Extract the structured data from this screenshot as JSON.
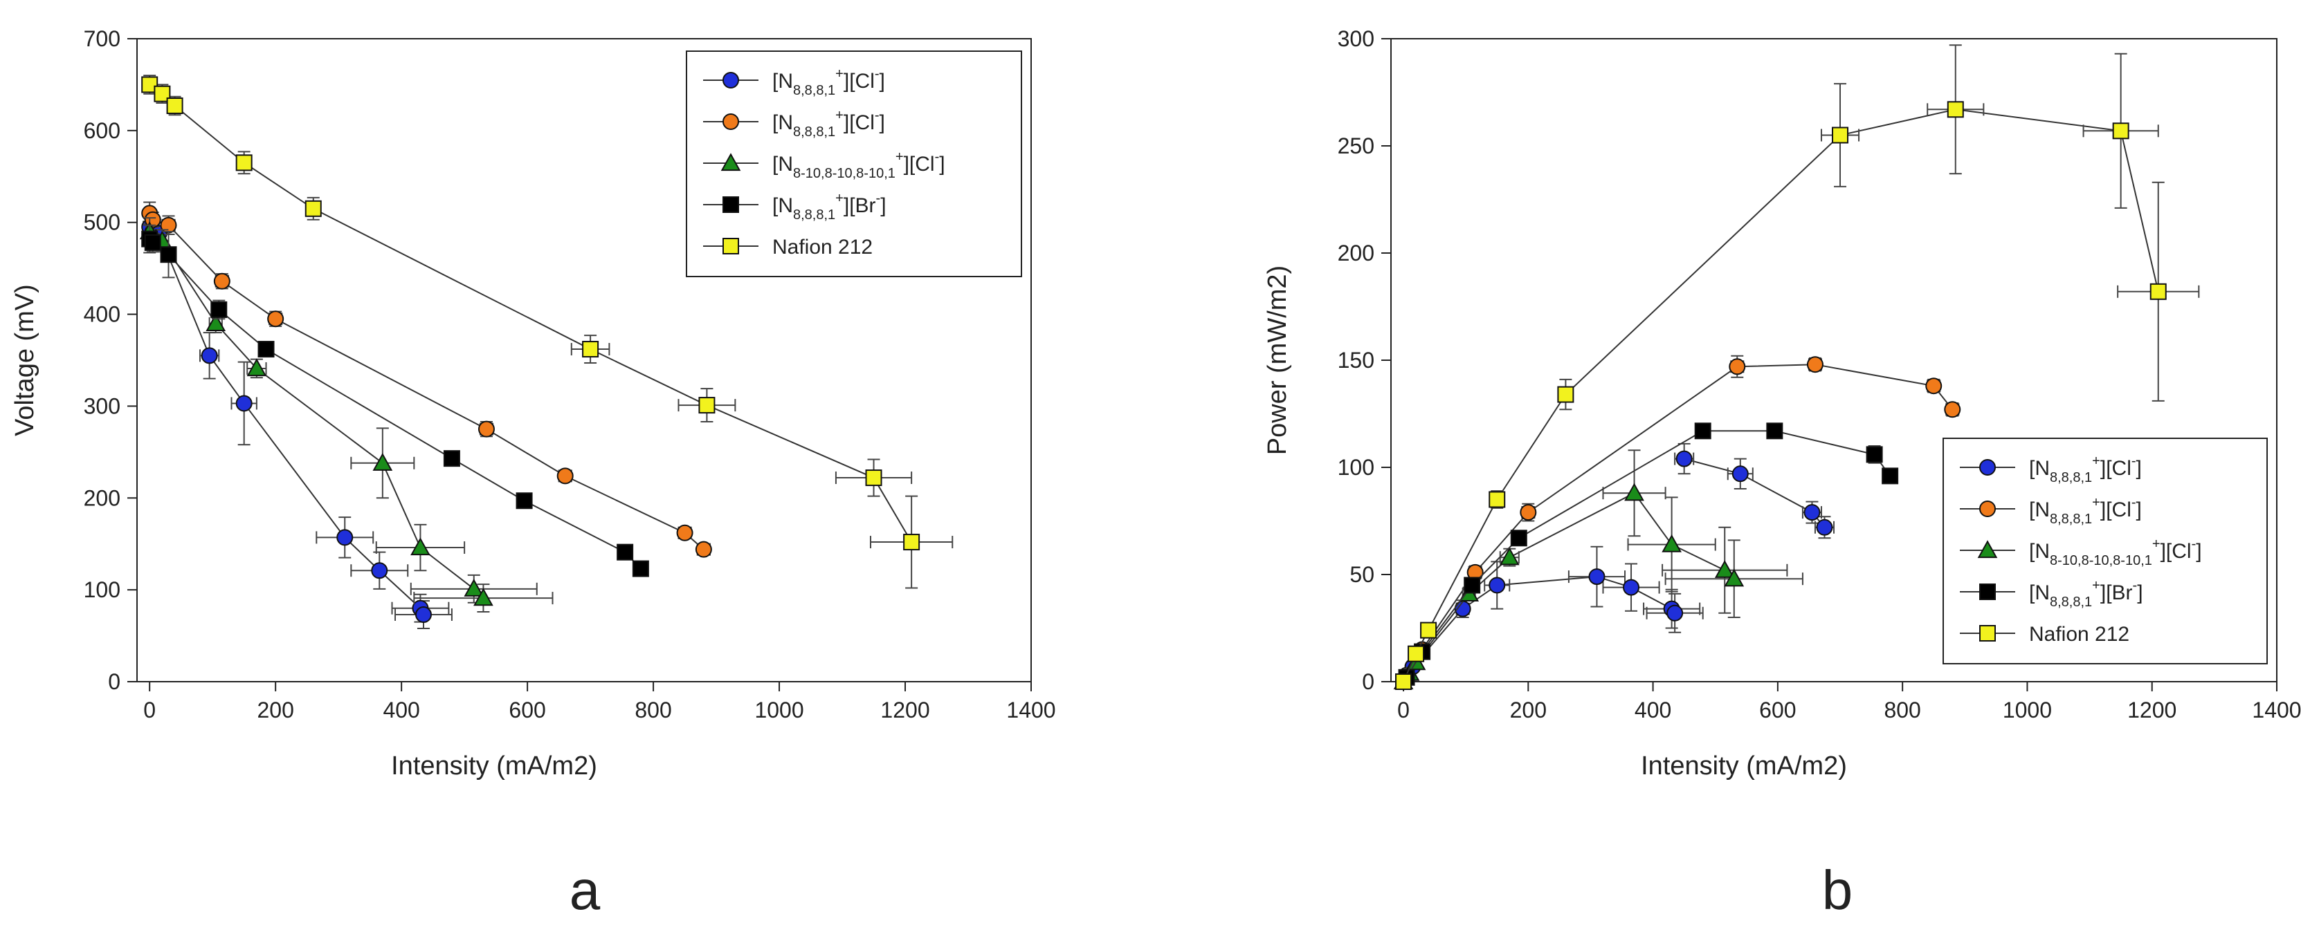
{
  "panels": [
    {
      "panel_label": "a",
      "chart_data": {
        "type": "scatter",
        "title": "",
        "xlabel": "Intensity (mA/m2)",
        "ylabel": "Voltage (mV)",
        "xlim": [
          -20,
          1400
        ],
        "ylim": [
          0,
          700
        ],
        "xticks": [
          0,
          200,
          400,
          600,
          800,
          1000,
          1200,
          1400
        ],
        "yticks": [
          0,
          100,
          200,
          300,
          400,
          500,
          600,
          700
        ],
        "grid": false,
        "legend_position": "top-right",
        "series": [
          {
            "name": "[N8,8,8,1+][Cl-] (blue)",
            "legend": {
              "main": "[N",
              "sub": "8,8,8,1",
              "sup": "+",
              "rest": "][Cl",
              "rsup": "-",
              "end": "]"
            },
            "color": "#1f2fd9",
            "marker": "circle",
            "points": [
              {
                "x": 0,
                "y": 495,
                "ex": 10,
                "ey": 15
              },
              {
                "x": 5,
                "y": 490,
                "ex": 10,
                "ey": 10
              },
              {
                "x": 15,
                "y": 488,
                "ex": 10,
                "ey": 12
              },
              {
                "x": 95,
                "y": 355,
                "ex": 15,
                "ey": 25
              },
              {
                "x": 150,
                "y": 303,
                "ex": 20,
                "ey": 45
              },
              {
                "x": 310,
                "y": 157,
                "ex": 45,
                "ey": 22
              },
              {
                "x": 365,
                "y": 121,
                "ex": 45,
                "ey": 20
              },
              {
                "x": 430,
                "y": 80,
                "ex": 45,
                "ey": 15
              },
              {
                "x": 435,
                "y": 73,
                "ex": 45,
                "ey": 15
              }
            ]
          },
          {
            "name": "[N8,8,8,1+][Cl-] (orange)",
            "legend": {
              "main": "[N",
              "sub": "8,8,8,1",
              "sup": "+",
              "rest": "][Cl",
              "rsup": "-",
              "end": "]"
            },
            "color": "#f07a1a",
            "marker": "circle",
            "points": [
              {
                "x": 0,
                "y": 510,
                "ex": 5,
                "ey": 12
              },
              {
                "x": 5,
                "y": 503,
                "ex": 5,
                "ey": 8
              },
              {
                "x": 30,
                "y": 497,
                "ex": 10,
                "ey": 10
              },
              {
                "x": 115,
                "y": 436,
                "ex": 10,
                "ey": 8
              },
              {
                "x": 200,
                "y": 395,
                "ex": 10,
                "ey": 8
              },
              {
                "x": 535,
                "y": 275,
                "ex": 10,
                "ey": 8
              },
              {
                "x": 660,
                "y": 224,
                "ex": 10,
                "ey": 6
              },
              {
                "x": 850,
                "y": 162,
                "ex": 10,
                "ey": 6
              },
              {
                "x": 880,
                "y": 144,
                "ex": 10,
                "ey": 6
              }
            ]
          },
          {
            "name": "[N8-10,8-10,8-10,1+][Cl-]",
            "legend": {
              "main": "[N",
              "sub": "8-10,8-10,8-10,1",
              "sup": "+",
              "rest": "][Cl",
              "rsup": "-",
              "end": "]"
            },
            "color": "#1a8c1a",
            "marker": "triangle",
            "points": [
              {
                "x": 0,
                "y": 490,
                "ex": 5,
                "ey": 15
              },
              {
                "x": 10,
                "y": 482,
                "ex": 5,
                "ey": 10
              },
              {
                "x": 20,
                "y": 480,
                "ex": 10,
                "ey": 12
              },
              {
                "x": 105,
                "y": 390,
                "ex": 10,
                "ey": 10
              },
              {
                "x": 170,
                "y": 341,
                "ex": 15,
                "ey": 10
              },
              {
                "x": 370,
                "y": 238,
                "ex": 50,
                "ey": 38
              },
              {
                "x": 430,
                "y": 146,
                "ex": 70,
                "ey": 25
              },
              {
                "x": 515,
                "y": 101,
                "ex": 100,
                "ey": 15
              },
              {
                "x": 530,
                "y": 91,
                "ex": 110,
                "ey": 15
              }
            ]
          },
          {
            "name": "[N8,8,8,1+][Br-]",
            "legend": {
              "main": "[N",
              "sub": "8,8,8,1",
              "sup": "+",
              "rest": "][Br",
              "rsup": "-",
              "end": "]"
            },
            "color": "#000000",
            "marker": "square",
            "points": [
              {
                "x": 0,
                "y": 482,
                "ex": 5,
                "ey": 15
              },
              {
                "x": 5,
                "y": 478,
                "ex": 5,
                "ey": 10
              },
              {
                "x": 30,
                "y": 465,
                "ex": 10,
                "ey": 25
              },
              {
                "x": 110,
                "y": 405,
                "ex": 10,
                "ey": 10
              },
              {
                "x": 185,
                "y": 362,
                "ex": 10,
                "ey": 8
              },
              {
                "x": 480,
                "y": 243,
                "ex": 10,
                "ey": 6
              },
              {
                "x": 595,
                "y": 197,
                "ex": 10,
                "ey": 6
              },
              {
                "x": 755,
                "y": 141,
                "ex": 10,
                "ey": 6
              },
              {
                "x": 780,
                "y": 123,
                "ex": 10,
                "ey": 6
              }
            ]
          },
          {
            "name": "Nafion 212",
            "legend": {
              "main": "Nafion 212",
              "sub": "",
              "sup": "",
              "rest": "",
              "rsup": "",
              "end": ""
            },
            "color": "#f2f21e",
            "marker": "square",
            "points": [
              {
                "x": 0,
                "y": 650,
                "ex": 10,
                "ey": 10
              },
              {
                "x": 20,
                "y": 640,
                "ex": 10,
                "ey": 10
              },
              {
                "x": 40,
                "y": 627,
                "ex": 10,
                "ey": 10
              },
              {
                "x": 150,
                "y": 565,
                "ex": 10,
                "ey": 12
              },
              {
                "x": 260,
                "y": 515,
                "ex": 10,
                "ey": 12
              },
              {
                "x": 700,
                "y": 362,
                "ex": 30,
                "ey": 15
              },
              {
                "x": 885,
                "y": 301,
                "ex": 45,
                "ey": 18
              },
              {
                "x": 1150,
                "y": 222,
                "ex": 60,
                "ey": 20
              },
              {
                "x": 1210,
                "y": 152,
                "ex": 65,
                "ey": 50
              }
            ]
          }
        ]
      }
    },
    {
      "panel_label": "b",
      "chart_data": {
        "type": "scatter",
        "title": "",
        "xlabel": "Intensity (mA/m2)",
        "ylabel": "Power (mW/m2)",
        "xlim": [
          -20,
          1400
        ],
        "ylim": [
          0,
          300
        ],
        "xticks": [
          0,
          200,
          400,
          600,
          800,
          1000,
          1200,
          1400
        ],
        "yticks": [
          0,
          50,
          100,
          150,
          200,
          250,
          300
        ],
        "grid": false,
        "legend_position": "bottom-right",
        "series": [
          {
            "name": "[N8,8,8,1+][Cl-] (blue)",
            "legend": {
              "main": "[N",
              "sub": "8,8,8,1",
              "sup": "+",
              "rest": "][Cl",
              "rsup": "-",
              "end": "]"
            },
            "color": "#1f2fd9",
            "marker": "circle",
            "points": [
              {
                "x": 0,
                "y": 0,
                "ex": 5,
                "ey": 2
              },
              {
                "x": 5,
                "y": 3,
                "ex": 5,
                "ey": 2
              },
              {
                "x": 15,
                "y": 7,
                "ex": 5,
                "ey": 2
              },
              {
                "x": 95,
                "y": 34,
                "ex": 10,
                "ey": 4
              },
              {
                "x": 150,
                "y": 45,
                "ex": 20,
                "ey": 11
              },
              {
                "x": 310,
                "y": 49,
                "ex": 45,
                "ey": 14
              },
              {
                "x": 365,
                "y": 44,
                "ex": 45,
                "ey": 11
              },
              {
                "x": 430,
                "y": 34,
                "ex": 45,
                "ey": 9
              },
              {
                "x": 435,
                "y": 32,
                "ex": 45,
                "ey": 9
              },
              {
                "x": 450,
                "y": 104,
                "ex": 15,
                "ey": 7
              },
              {
                "x": 540,
                "y": 97,
                "ex": 20,
                "ey": 7
              },
              {
                "x": 655,
                "y": 79,
                "ex": 15,
                "ey": 5
              },
              {
                "x": 675,
                "y": 72,
                "ex": 15,
                "ey": 5
              }
            ],
            "segments": [
              [
                0,
                8
              ],
              [
                9,
                12
              ]
            ]
          },
          {
            "name": "[N8,8,8,1+][Cl-] (orange)",
            "legend": {
              "main": "[N",
              "sub": "8,8,8,1",
              "sup": "+",
              "rest": "][Cl",
              "rsup": "-",
              "end": "]"
            },
            "color": "#f07a1a",
            "marker": "circle",
            "points": [
              {
                "x": 0,
                "y": 0,
                "ex": 5,
                "ey": 2
              },
              {
                "x": 5,
                "y": 3,
                "ex": 5,
                "ey": 2
              },
              {
                "x": 30,
                "y": 15,
                "ex": 5,
                "ey": 2
              },
              {
                "x": 115,
                "y": 51,
                "ex": 10,
                "ey": 3
              },
              {
                "x": 200,
                "y": 79,
                "ex": 10,
                "ey": 4
              },
              {
                "x": 535,
                "y": 147,
                "ex": 10,
                "ey": 5
              },
              {
                "x": 660,
                "y": 148,
                "ex": 10,
                "ey": 3
              },
              {
                "x": 850,
                "y": 138,
                "ex": 10,
                "ey": 3
              },
              {
                "x": 880,
                "y": 127,
                "ex": 10,
                "ey": 3
              }
            ]
          },
          {
            "name": "[N8-10,8-10,8-10,1+][Cl-]",
            "legend": {
              "main": "[N",
              "sub": "8-10,8-10,8-10,1",
              "sup": "+",
              "rest": "][Cl",
              "rsup": "-",
              "end": "]"
            },
            "color": "#1a8c1a",
            "marker": "triangle",
            "points": [
              {
                "x": 0,
                "y": 0,
                "ex": 5,
                "ey": 2
              },
              {
                "x": 10,
                "y": 4,
                "ex": 5,
                "ey": 2
              },
              {
                "x": 20,
                "y": 9,
                "ex": 5,
                "ey": 2
              },
              {
                "x": 105,
                "y": 41,
                "ex": 10,
                "ey": 3
              },
              {
                "x": 170,
                "y": 58,
                "ex": 15,
                "ey": 4
              },
              {
                "x": 370,
                "y": 88,
                "ex": 50,
                "ey": 20
              },
              {
                "x": 430,
                "y": 64,
                "ex": 70,
                "ey": 22
              },
              {
                "x": 515,
                "y": 52,
                "ex": 100,
                "ey": 20
              },
              {
                "x": 530,
                "y": 48,
                "ex": 110,
                "ey": 18
              }
            ]
          },
          {
            "name": "[N8,8,8,1+][Br-]",
            "legend": {
              "main": "[N",
              "sub": "8,8,8,1",
              "sup": "+",
              "rest": "][Br",
              "rsup": "-",
              "end": "]"
            },
            "color": "#000000",
            "marker": "square",
            "points": [
              {
                "x": 0,
                "y": 0,
                "ex": 5,
                "ey": 2
              },
              {
                "x": 5,
                "y": 2,
                "ex": 5,
                "ey": 2
              },
              {
                "x": 30,
                "y": 14,
                "ex": 5,
                "ey": 2
              },
              {
                "x": 110,
                "y": 45,
                "ex": 10,
                "ey": 3
              },
              {
                "x": 185,
                "y": 67,
                "ex": 10,
                "ey": 3
              },
              {
                "x": 480,
                "y": 117,
                "ex": 10,
                "ey": 3
              },
              {
                "x": 595,
                "y": 117,
                "ex": 10,
                "ey": 3
              },
              {
                "x": 755,
                "y": 106,
                "ex": 10,
                "ey": 4
              },
              {
                "x": 780,
                "y": 96,
                "ex": 10,
                "ey": 3
              }
            ]
          },
          {
            "name": "Nafion 212",
            "legend": {
              "main": "Nafion 212",
              "sub": "",
              "sup": "",
              "rest": "",
              "rsup": "",
              "end": ""
            },
            "color": "#f2f21e",
            "marker": "square",
            "points": [
              {
                "x": 0,
                "y": 0,
                "ex": 5,
                "ey": 2
              },
              {
                "x": 20,
                "y": 13,
                "ex": 5,
                "ey": 2
              },
              {
                "x": 40,
                "y": 24,
                "ex": 5,
                "ey": 2
              },
              {
                "x": 150,
                "y": 85,
                "ex": 10,
                "ey": 4
              },
              {
                "x": 260,
                "y": 134,
                "ex": 10,
                "ey": 7
              },
              {
                "x": 700,
                "y": 255,
                "ex": 30,
                "ey": 24
              },
              {
                "x": 885,
                "y": 267,
                "ex": 45,
                "ey": 30
              },
              {
                "x": 1150,
                "y": 257,
                "ex": 60,
                "ey": 36
              },
              {
                "x": 1210,
                "y": 182,
                "ex": 65,
                "ey": 51
              }
            ]
          }
        ]
      }
    }
  ]
}
